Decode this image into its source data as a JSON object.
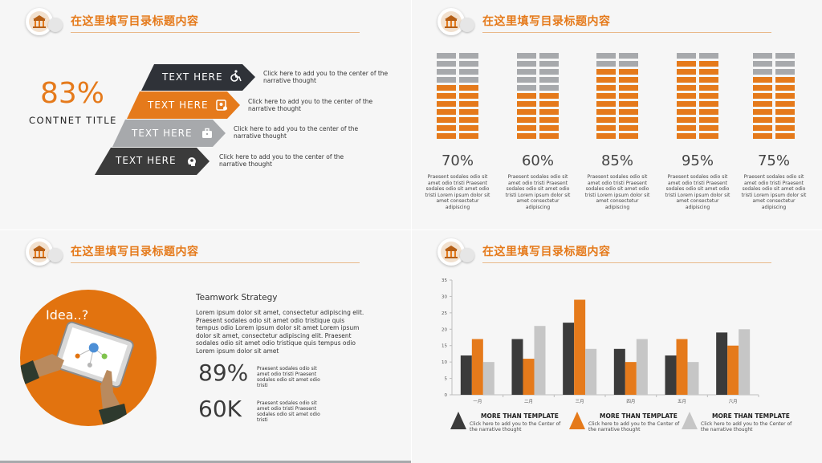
{
  "header_title": "在这里填写目录标题内容",
  "colors": {
    "orange": "#e57a1b",
    "dark": "#3b3b3b",
    "gray": "#a7a9ac",
    "light_gray": "#c6c6c6"
  },
  "panel1": {
    "big_percent": "83%",
    "subtitle": "CONTNET TITLE",
    "rows": [
      {
        "label": "TEXT HERE",
        "icon": "wheelchair-icon",
        "desc": "Click here to add you to the center of the narrative thought",
        "color": "#2f3238"
      },
      {
        "label": "TEXT HERE",
        "icon": "id-badge-icon",
        "desc": "Click here to add you to the center of the narrative thought",
        "color": "#e57a1b"
      },
      {
        "label": "TEXT HERE",
        "icon": "briefcase-icon",
        "desc": "Click here to add you to the center of the narrative thought",
        "color": "#a7a9ac"
      },
      {
        "label": "TEXT HERE",
        "icon": "head-gear-icon",
        "desc": "Click here to add you to the center of the narrative thought",
        "color": "#3b3b3b"
      }
    ]
  },
  "panel2": {
    "columns": [
      {
        "percent": "70%",
        "desc": "Praesent sodales odio sit amet odio tristi Praesent sodales odio sit amet odio tristi Lorem ipsum dolor sit amet consectetur adipiscing",
        "orange_rows": 7
      },
      {
        "percent": "60%",
        "desc": "Praesent sodales odio sit amet odio tristi Praesent sodales odio sit amet odio tristi Lorem ipsum dolor sit amet consectetur adipiscing",
        "orange_rows": 6
      },
      {
        "percent": "85%",
        "desc": "Praesent sodales odio sit amet odio tristi Praesent sodales odio sit amet odio tristi Lorem ipsum dolor sit amet consectetur adipiscing",
        "orange_rows": 9
      },
      {
        "percent": "95%",
        "desc": "Praesent sodales odio sit amet odio tristi Praesent sodales odio sit amet odio tristi Lorem ipsum dolor sit amet consectetur adipiscing",
        "orange_rows": 10
      },
      {
        "percent": "75%",
        "desc": "Praesent sodales odio sit amet odio tristi Praesent sodales odio sit amet odio tristi Lorem ipsum dolor sit amet consectetur adipiscing",
        "orange_rows": 8
      }
    ],
    "total_rows": 11
  },
  "panel3": {
    "idea": "Idea..?",
    "heading": "Teamwork Strategy",
    "body": "Lorem ipsum dolor sit amet, consectetur adipiscing elit. Praesent sodales odio sit amet odio tristique quis tempus odio Lorem ipsum dolor sit amet Lorem ipsum dolor sit amet, consectetur adipiscing elit. Praesent sodales odio sit amet odio tristique quis tempus odio Lorem ipsum dolor sit amet",
    "stat1": {
      "value": "89%",
      "desc": "Praesent sodales odio sit amet odio tristi Praesent sodales odio sit amet odio tristi"
    },
    "stat2": {
      "value": "60K",
      "desc": "Praesent sodales odio sit amet odio tristi Praesent sodales odio sit amet odio tristi"
    }
  },
  "panel4": {
    "legend": [
      {
        "label": "MORE THAN TEMPLATE",
        "desc": "Click here to add you to the Center of the narrative thought",
        "color": "#3b3b3b"
      },
      {
        "label": "MORE THAN TEMPLATE",
        "desc": "Click here to add you to the Center of the narrative thought",
        "color": "#e57a1b"
      },
      {
        "label": "MORE THAN TEMPLATE",
        "desc": "Click here to add you to the Center of the narrative thought",
        "color": "#c6c6c6"
      }
    ]
  },
  "chart_data": {
    "type": "bar",
    "categories": [
      "一月",
      "二月",
      "三月",
      "四月",
      "五月",
      "六月"
    ],
    "series": [
      {
        "values": [
          12,
          17,
          22,
          14,
          12,
          19
        ],
        "color": "#3b3b3b"
      },
      {
        "values": [
          17,
          11,
          29,
          10,
          17,
          15
        ],
        "color": "#e57a1b"
      },
      {
        "values": [
          10,
          21,
          14,
          17,
          10,
          20
        ],
        "color": "#c6c6c6"
      }
    ],
    "ylim": [
      0,
      35
    ],
    "yticks": [
      0,
      5,
      10,
      15,
      20,
      25,
      30,
      35
    ],
    "grid": false,
    "legend_position": "bottom"
  }
}
